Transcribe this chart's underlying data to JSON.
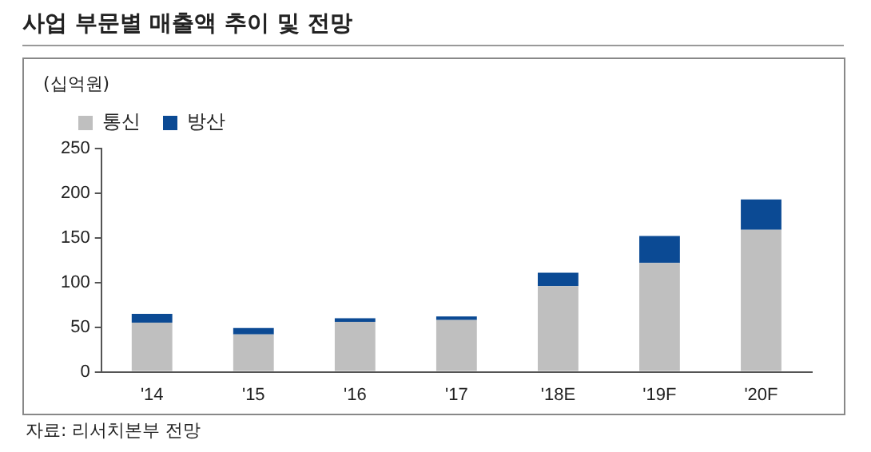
{
  "chart_data": {
    "type": "bar",
    "title": "사업 부문별 매출액 추이 및 전망",
    "ylabel": "(십억원)",
    "categories": [
      "'14",
      "'15",
      "'16",
      "'17",
      "'18E",
      "'19F",
      "'20F"
    ],
    "series": [
      {
        "name": "통신",
        "color": "#bfbfbf",
        "values": [
          55,
          42,
          56,
          58,
          96,
          122,
          159
        ]
      },
      {
        "name": "방산",
        "color": "#0b4a94",
        "values": [
          10,
          7,
          4,
          4,
          15,
          30,
          34
        ]
      }
    ],
    "stacked": true,
    "ylim": [
      0,
      250
    ],
    "yticks": [
      0,
      50,
      100,
      150,
      200,
      250
    ],
    "grid": false,
    "legend": "top left",
    "annotations": [
      "자료: 리서치본부 전망"
    ]
  }
}
